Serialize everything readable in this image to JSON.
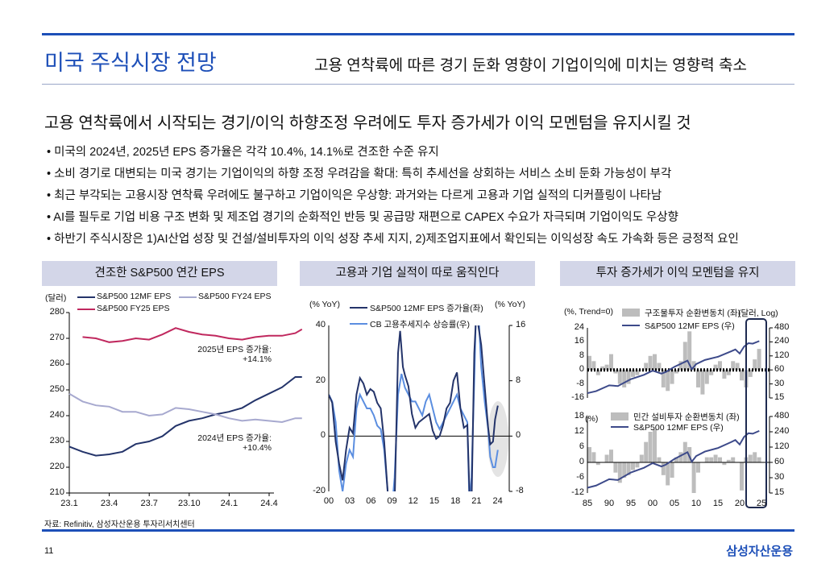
{
  "header": {
    "title": "미국 주식시장 전망",
    "subtitle": "고용 연착륙에 따른 경기 둔화 영향이 기업이익에 미치는 영향력 축소"
  },
  "headline": "고용 연착륙에서 시작되는 경기/이익 하향조정 우려에도 투자 증가세가 이익 모멘텀을 유지시킬 것",
  "bullets": [
    "• 미국의 2024년, 2025년 EPS 증가율은 각각 10.4%, 14.1%로 견조한 수준 유지",
    "• 소비 경기로 대변되는 미국 경기는 기업이익의 하향 조정 우려감을 확대: 특히 추세선을 상회하는 서비스 소비 둔화 가능성이 부각",
    "• 최근 부각되는 고용시장 연착륙 우려에도 불구하고 기업이익은 우상향: 과거와는 다르게 고용과 기업 실적의 디커플링이 나타남",
    "• AI를 필두로 기업 비용 구조 변화 및 제조업 경기의 순화적인 반등 및 공급망 재편으로 CAPEX 수요가 자극되며 기업이익도 우상향",
    "• 하반기 주식시장은 1)AI산업 성장 및 건설/설비투자의 이익 성장 추세 지지, 2)제조업지표에서 확인되는 이익성장 속도 가속화 등은 긍정적 요인"
  ],
  "footer": {
    "source": "자료: Refinitiv, 삼성자산운용 투자리서치센터",
    "page": "11",
    "logo": "삼성자산운용"
  },
  "colors": {
    "brand": "#1d4fb8",
    "navy": "#24346a",
    "lavender": "#a7a9cf",
    "crimson": "#c0285e",
    "lightblue": "#5b8ee0",
    "bar": "#bdbdbd"
  },
  "chart_data": [
    {
      "type": "line",
      "title": "견조한 S&P500 연간 EPS",
      "ylabel": "(달러)",
      "ylim": [
        210,
        280
      ],
      "yticks": [
        "280",
        "270",
        "260",
        "250",
        "240",
        "230",
        "220",
        "210"
      ],
      "xticks": [
        "23.1",
        "23.4",
        "23.7",
        "23.10",
        "24.1",
        "24.4"
      ],
      "annotations": [
        "2025년 EPS 증가율:",
        "+14.1%",
        "2024년 EPS 증가율:",
        "+10.4%"
      ],
      "series": [
        {
          "name": "S&P500 12MF EPS",
          "x_months": [
            0,
            1,
            2,
            3,
            4,
            5,
            6,
            7,
            8,
            9,
            10,
            11,
            12,
            13,
            14,
            15,
            16,
            17,
            17.5
          ],
          "values": [
            228,
            226,
            224.5,
            225,
            226,
            229,
            230,
            232,
            236,
            238,
            239,
            240.5,
            241.5,
            243,
            246,
            248.5,
            251,
            255,
            255
          ]
        },
        {
          "name": "S&P500 FY24 EPS",
          "x_months": [
            0,
            1,
            2,
            3,
            4,
            5,
            6,
            7,
            8,
            9,
            10,
            11,
            12,
            13,
            14,
            15,
            16,
            17,
            17.5
          ],
          "values": [
            248.5,
            245.5,
            244,
            243.5,
            241.5,
            241.5,
            240,
            240.5,
            243,
            242.5,
            241.5,
            240.5,
            239,
            238,
            238.5,
            238,
            237.5,
            239,
            239
          ]
        },
        {
          "name": "S&P500 FY25 EPS",
          "x_months": [
            1,
            2,
            3,
            4,
            5,
            6,
            7,
            8,
            9,
            10,
            11,
            12,
            13,
            14,
            15,
            16,
            17,
            17.5
          ],
          "values": [
            270.5,
            270,
            268.5,
            269,
            270,
            269.5,
            271.5,
            274,
            272.5,
            271.5,
            271,
            270,
            269.5,
            270.5,
            271,
            271,
            272,
            273.5
          ]
        }
      ]
    },
    {
      "type": "line",
      "title": "고용과 기업 실적이 따로 움직인다",
      "ylabel_left": "(% YoY)",
      "ylabel_right": "(% YoY)",
      "ylim_left": [
        -20,
        40
      ],
      "ylim_right": [
        -8,
        16
      ],
      "yticks_left": [
        "40",
        "20",
        "0",
        "-20"
      ],
      "yticks_right": [
        "16",
        "8",
        "0",
        "-8"
      ],
      "xticks": [
        "00",
        "03",
        "06",
        "09",
        "12",
        "15",
        "18",
        "21",
        "24"
      ],
      "series": [
        {
          "name": "S&P500 12MF EPS 증가율(좌)",
          "axis": "left",
          "x": [
            2000,
            2000.5,
            2001,
            2001.5,
            2002,
            2002.5,
            2003,
            2003.5,
            2004,
            2004.5,
            2005,
            2005.5,
            2006,
            2006.5,
            2007,
            2007.5,
            2008,
            2008.5,
            2009,
            2009.5,
            2010,
            2010.3,
            2010.7,
            2011,
            2011.5,
            2012,
            2012.5,
            2013,
            2013.5,
            2014,
            2014.5,
            2015,
            2015.5,
            2016,
            2016.5,
            2017,
            2017.5,
            2018,
            2018.5,
            2019,
            2019.5,
            2020,
            2020.3,
            2020.6,
            2021,
            2021.3,
            2021.7,
            2022,
            2022.5,
            2023,
            2023.3,
            2023.7,
            2024,
            2024.4
          ],
          "values": [
            15,
            12,
            -2,
            -10,
            -16,
            -5,
            3,
            1,
            15,
            21,
            19,
            15,
            17,
            16,
            12,
            10,
            -2,
            -20,
            -30,
            -25,
            30,
            38,
            25,
            22,
            18,
            8,
            3,
            5,
            6,
            7,
            8,
            2,
            -1,
            0,
            4,
            10,
            12,
            20,
            23,
            10,
            3,
            4,
            -20,
            -25,
            30,
            45,
            38,
            33,
            18,
            3,
            -3,
            -2,
            6,
            11
          ]
        },
        {
          "name": "CB 고용추세지수 상승률(우)",
          "axis": "right",
          "x": [
            2000,
            2000.5,
            2001,
            2001.5,
            2002,
            2002.5,
            2003,
            2003.5,
            2004,
            2004.5,
            2005,
            2005.5,
            2006,
            2006.5,
            2007,
            2007.5,
            2008,
            2008.5,
            2009,
            2009.5,
            2010,
            2010.5,
            2011,
            2011.5,
            2012,
            2012.5,
            2013,
            2013.5,
            2014,
            2014.5,
            2015,
            2015.5,
            2016,
            2016.5,
            2017,
            2017.5,
            2018,
            2018.5,
            2019,
            2019.5,
            2020,
            2020.3,
            2020.6,
            2021,
            2021.3,
            2021.7,
            2022,
            2022.5,
            2023,
            2023.3,
            2023.7,
            2024,
            2024.4
          ],
          "values": [
            6,
            5,
            2,
            -5,
            -8,
            -4,
            -2,
            -3,
            4,
            6,
            5,
            4,
            4,
            3,
            1.5,
            1,
            -2,
            -8,
            -12,
            -6,
            6,
            9,
            7,
            6,
            5,
            5,
            4,
            3,
            5,
            6,
            4,
            2,
            1,
            2,
            3,
            4,
            5,
            6,
            4,
            3,
            2,
            -10,
            -6,
            8,
            20,
            16,
            10,
            5,
            1,
            -3,
            -4.5,
            -4.5,
            -2
          ]
        }
      ]
    },
    {
      "type": "bar+line",
      "title": "투자 증가세가 이익 모멘텀을 유지",
      "xticks": [
        "85",
        "90",
        "95",
        "00",
        "05",
        "10",
        "15",
        "20",
        "25"
      ],
      "panels": [
        {
          "ylabel_left": "(%, Trend=0)",
          "ylabel_right": "(달러, Log)",
          "ylim_left": [
            -16,
            24
          ],
          "yticks_left": [
            "24",
            "16",
            "8",
            "0",
            "-8",
            "-16"
          ],
          "yticks_right": [
            "480",
            "240",
            "120",
            "60",
            "30",
            "15"
          ],
          "bar_series": {
            "name": "구조물투자 순환변동치 (좌)",
            "x": [
              1985,
              1986,
              1987,
              1988,
              1989,
              1990,
              1991,
              1992,
              1993,
              1994,
              1995,
              1996,
              1997,
              1998,
              1999,
              2000,
              2001,
              2002,
              2003,
              2004,
              2005,
              2006,
              2007,
              2008,
              2009,
              2010,
              2011,
              2012,
              2013,
              2014,
              2015,
              2016,
              2017,
              2018,
              2019,
              2020,
              2021,
              2022,
              2023,
              2024
            ],
            "values": [
              8,
              5,
              -3,
              2,
              3,
              9,
              -2,
              -8,
              -10,
              -8,
              -4,
              -3,
              0,
              4,
              8,
              9,
              4,
              -10,
              -12,
              -8,
              -2,
              5,
              16,
              22,
              5,
              -10,
              -14,
              -8,
              -3,
              3,
              5,
              -5,
              -3,
              5,
              4,
              -6,
              -10,
              -4,
              6,
              12
            ]
          },
          "line_series": {
            "name": "S&P500 12MF EPS (우)"
          }
        },
        {
          "ylabel_left": "(%)",
          "ylim_left": [
            -12,
            18
          ],
          "yticks_left": [
            "18",
            "12",
            "6",
            "0",
            "-6",
            "-12"
          ],
          "yticks_right": [
            "480",
            "240",
            "120",
            "60",
            "30",
            "15"
          ],
          "bar_series": {
            "name": "민간 설비투자 순환변동치 (좌)",
            "x": [
              1985,
              1986,
              1987,
              1988,
              1989,
              1990,
              1991,
              1992,
              1993,
              1994,
              1995,
              1996,
              1997,
              1998,
              1999,
              2000,
              2001,
              2002,
              2003,
              2004,
              2005,
              2006,
              2007,
              2008,
              2009,
              2010,
              2011,
              2012,
              2013,
              2014,
              2015,
              2016,
              2017,
              2018,
              2019,
              2020,
              2021,
              2022,
              2023,
              2024
            ],
            "values": [
              6,
              4,
              -1,
              0,
              3,
              5,
              -4,
              -8,
              -6,
              -5,
              -3,
              -2,
              3,
              8,
              12,
              13,
              2,
              -5,
              -9,
              -6,
              2,
              4,
              8,
              6,
              -12,
              -4,
              0,
              2,
              2,
              3,
              2,
              -1,
              1,
              2,
              0,
              -11,
              2,
              3,
              4,
              2
            ]
          },
          "line_series": {
            "name": "S&P500 12MF EPS (우)"
          }
        }
      ],
      "eps_line": {
        "x": [
          1985,
          1987,
          1990,
          1992,
          1995,
          1998,
          2000,
          2002,
          2003,
          2005,
          2008,
          2009,
          2010,
          2012,
          2015,
          2018,
          2019,
          2020,
          2021,
          2022,
          2023,
          2024.5
        ],
        "values": [
          19,
          21,
          28,
          27,
          38,
          47,
          58,
          50,
          54,
          70,
          95,
          62,
          80,
          98,
          115,
          150,
          165,
          135,
          190,
          225,
          220,
          250
        ]
      }
    }
  ]
}
